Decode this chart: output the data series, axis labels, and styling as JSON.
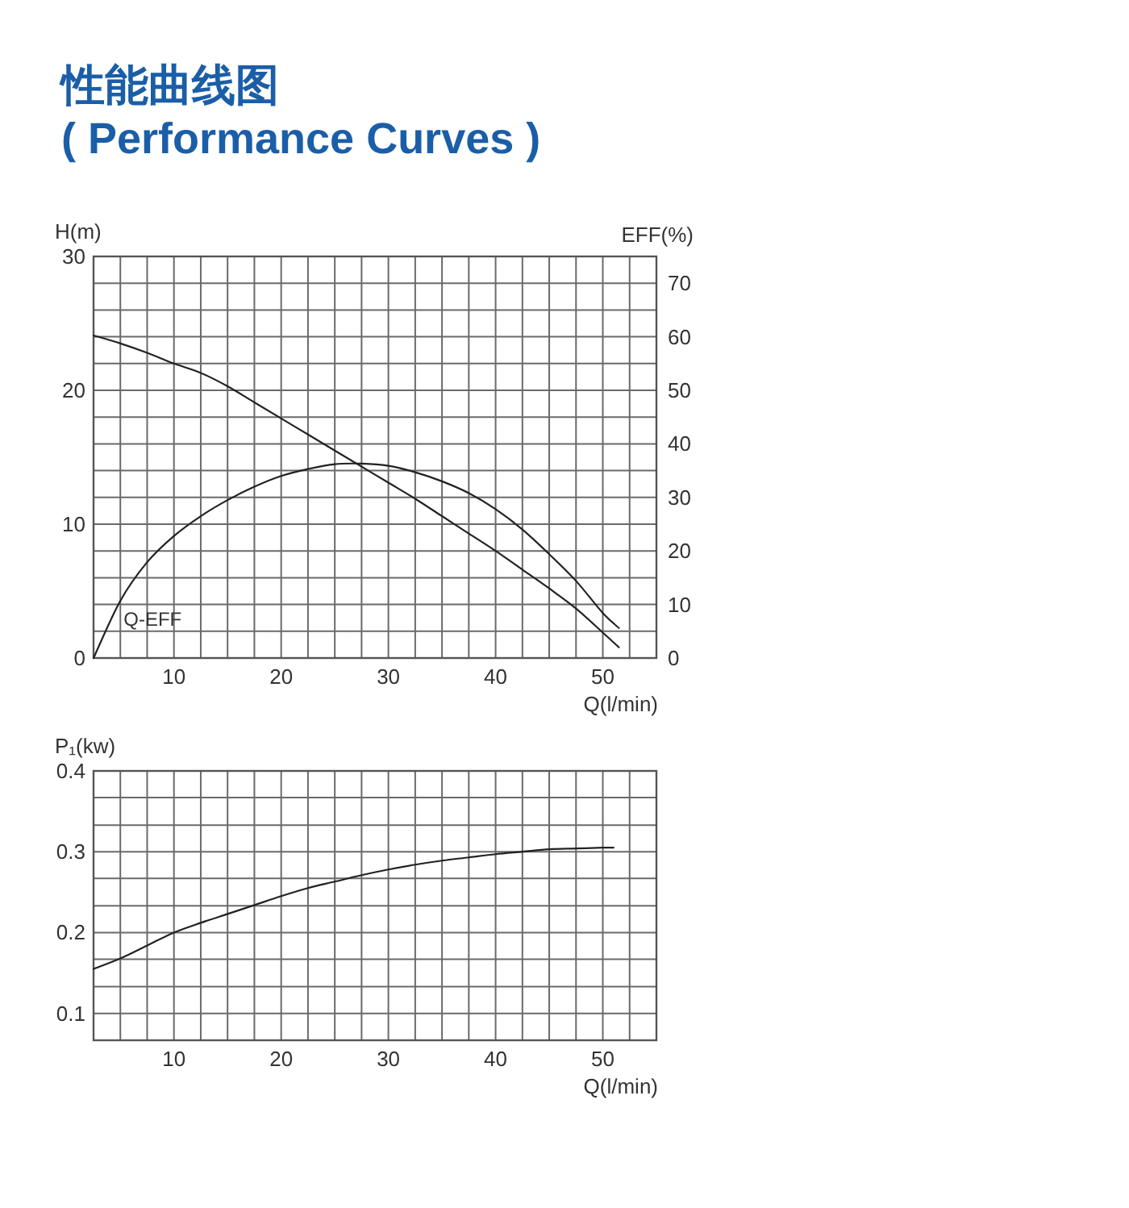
{
  "chart_data": [
    {
      "type": "line",
      "title": "性能曲线图",
      "subtitle": "( Performance Curves )",
      "xlabel": "Q(l/min)",
      "ylabel": "H(m)",
      "y2label": "EFF(%)",
      "xlim": [
        2.5,
        55
      ],
      "xticks": [
        {
          "value": 5,
          "label": null
        },
        {
          "value": 7.5,
          "label": null
        },
        10,
        {
          "value": 12.5,
          "label": null
        },
        {
          "value": 15,
          "label": null
        },
        {
          "value": 17.5,
          "label": null
        },
        20,
        {
          "value": 22.5,
          "label": null
        },
        {
          "value": 25,
          "label": null
        },
        {
          "value": 27.5,
          "label": null
        },
        30,
        {
          "value": 32.5,
          "label": null
        },
        {
          "value": 35,
          "label": null
        },
        {
          "value": 37.5,
          "label": null
        },
        40,
        {
          "value": 42.5,
          "label": null
        },
        {
          "value": 45,
          "label": null
        },
        {
          "value": 47.5,
          "label": null
        },
        50,
        {
          "value": 52.5,
          "label": null
        }
      ],
      "ylim": [
        0,
        30
      ],
      "yticks": [
        0,
        {
          "value": 2,
          "label": null
        },
        {
          "value": 4,
          "label": null
        },
        {
          "value": 6,
          "label": null
        },
        {
          "value": 8,
          "label": null
        },
        10,
        {
          "value": 12,
          "label": null
        },
        {
          "value": 14,
          "label": null
        },
        {
          "value": 16,
          "label": null
        },
        {
          "value": 18,
          "label": null
        },
        20,
        {
          "value": 22,
          "label": null
        },
        {
          "value": 24,
          "label": null
        },
        {
          "value": 26,
          "label": null
        },
        {
          "value": 28,
          "label": null
        },
        30
      ],
      "y2lim": [
        0,
        75
      ],
      "y2ticks": [
        0,
        10,
        20,
        30,
        40,
        50,
        60,
        70
      ],
      "grid": true,
      "series": [
        {
          "color": "#222222",
          "x": [
            2.5,
            5,
            7.5,
            10,
            12.5,
            15,
            17.5,
            20,
            22.5,
            25,
            27.5,
            30,
            32.5,
            35,
            37.5,
            40,
            42.5,
            45,
            47.5,
            50,
            51.5
          ],
          "values": [
            24.1,
            23.5,
            22.8,
            22.0,
            21.3,
            20.3,
            19.1,
            17.9,
            16.7,
            15.5,
            14.3,
            13.1,
            11.9,
            10.6,
            9.3,
            8.0,
            6.6,
            5.2,
            3.7,
            1.9,
            0.8
          ]
        },
        {
          "name": "Q-EFF",
          "axis": "y2",
          "color": "#222222",
          "x": [
            2.5,
            5,
            7.5,
            10,
            12.5,
            15,
            17.5,
            20,
            22.5,
            25,
            27.5,
            30,
            32.5,
            35,
            37.5,
            40,
            42.5,
            45,
            47.5,
            50,
            51.5
          ],
          "values": [
            0,
            10.7,
            17.9,
            22.8,
            26.5,
            29.5,
            32.0,
            34.0,
            35.3,
            36.2,
            36.3,
            35.9,
            34.7,
            33.0,
            30.8,
            27.8,
            24.0,
            19.4,
            14.4,
            8.4,
            5.6
          ]
        }
      ]
    },
    {
      "type": "line",
      "xlabel": "Q(l/min)",
      "ylabel": "P₁(kw)",
      "xlim": [
        2.5,
        55
      ],
      "xticks": [
        {
          "value": 5,
          "label": null
        },
        {
          "value": 7.5,
          "label": null
        },
        10,
        {
          "value": 12.5,
          "label": null
        },
        {
          "value": 15,
          "label": null
        },
        {
          "value": 17.5,
          "label": null
        },
        20,
        {
          "value": 22.5,
          "label": null
        },
        {
          "value": 25,
          "label": null
        },
        {
          "value": 27.5,
          "label": null
        },
        30,
        {
          "value": 32.5,
          "label": null
        },
        {
          "value": 35,
          "label": null
        },
        {
          "value": 37.5,
          "label": null
        },
        40,
        {
          "value": 42.5,
          "label": null
        },
        {
          "value": 45,
          "label": null
        },
        {
          "value": 47.5,
          "label": null
        },
        50,
        {
          "value": 52.5,
          "label": null
        }
      ],
      "ylim": [
        0.0667,
        0.4
      ],
      "yticks": [
        0.1,
        {
          "value": 0.133,
          "label": null
        },
        {
          "value": 0.167,
          "label": null
        },
        0.2,
        {
          "value": 0.233,
          "label": null
        },
        {
          "value": 0.267,
          "label": null
        },
        0.3,
        {
          "value": 0.333,
          "label": null
        },
        {
          "value": 0.367,
          "label": null
        },
        0.4
      ],
      "grid": true,
      "series": [
        {
          "color": "#222222",
          "x": [
            2.5,
            5,
            7.5,
            10,
            12.5,
            15,
            17.5,
            20,
            22.5,
            25,
            27.5,
            30,
            32.5,
            35,
            37.5,
            40,
            42.5,
            45,
            47.5,
            50,
            51
          ],
          "values": [
            0.155,
            0.168,
            0.184,
            0.2,
            0.212,
            0.223,
            0.234,
            0.245,
            0.255,
            0.263,
            0.271,
            0.278,
            0.284,
            0.289,
            0.293,
            0.297,
            0.3,
            0.303,
            0.304,
            0.305,
            0.305
          ]
        }
      ]
    }
  ]
}
